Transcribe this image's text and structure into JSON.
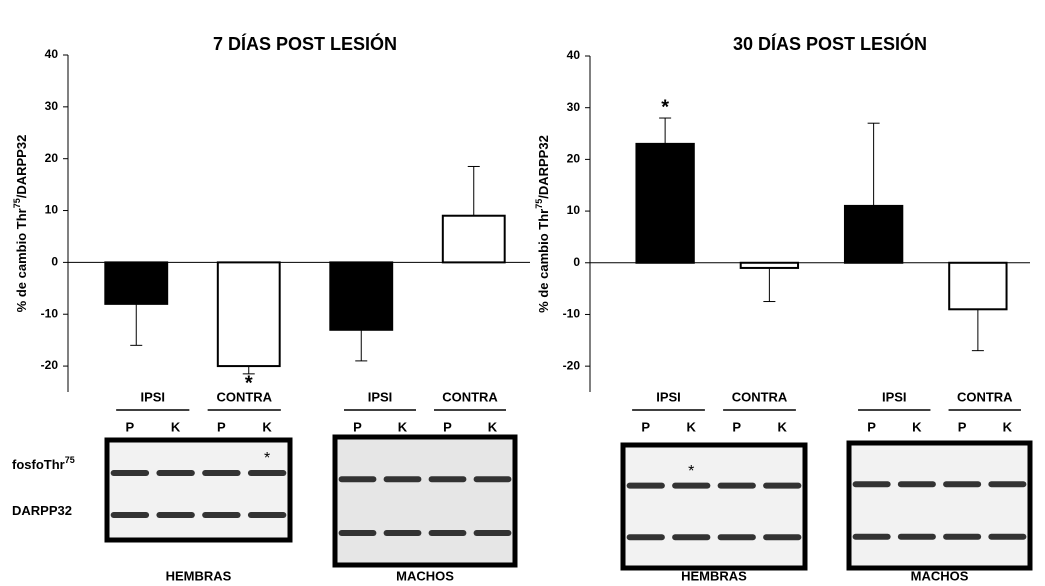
{
  "chart_data": [
    {
      "type": "bar",
      "title": "7 DÍAS POST LESIÓN",
      "ylabel": [
        "% de cambio Thr",
        "75",
        "/DARPP32"
      ],
      "categories": [
        null,
        null,
        null,
        null
      ],
      "values": [
        -8,
        -20,
        -13,
        9
      ],
      "errors": [
        8,
        1.5,
        6,
        9.5
      ],
      "colors": [
        "#000000",
        "#ffffff",
        "#000000",
        "#ffffff"
      ],
      "annotation": "*",
      "annotated": [
        false,
        true,
        false,
        false
      ],
      "ylim": [
        -25,
        40
      ],
      "yticks": [
        -20,
        -10,
        0,
        10,
        20,
        30,
        40
      ]
    },
    {
      "type": "bar",
      "title": "30 DÍAS POST LESIÓN",
      "ylabel": [
        "% de cambio Thr",
        "75",
        "/DARPP32"
      ],
      "categories": [
        null,
        null,
        null,
        null
      ],
      "values": [
        23,
        -1,
        11,
        -9
      ],
      "errors": [
        5,
        6.5,
        16,
        8
      ],
      "colors": [
        "#000000",
        "#ffffff",
        "#000000",
        "#ffffff"
      ],
      "annotation": "*",
      "annotated": [
        true,
        false,
        false,
        false
      ],
      "ylim": [
        -25,
        40
      ],
      "yticks": [
        -20,
        -10,
        0,
        10,
        20,
        30,
        40
      ]
    }
  ],
  "blots": {
    "row_labels": [
      [
        "fosfoThr",
        "75"
      ],
      [
        "DARPP32"
      ]
    ],
    "panels": [
      {
        "groups": [
          "IPSI",
          "CONTRA"
        ],
        "lanes": [
          "P",
          "K",
          "P",
          "K"
        ],
        "label": "HEMBRAS",
        "annotation": {
          "text": "*",
          "lane": 3
        }
      },
      {
        "groups": [
          "IPSI",
          "CONTRA"
        ],
        "lanes": [
          "P",
          "K",
          "P",
          "K"
        ],
        "label": "MACHOS"
      },
      {
        "groups": [
          "IPSI",
          "CONTRA"
        ],
        "lanes": [
          "P",
          "K",
          "P",
          "K"
        ],
        "label": "HEMBRAS",
        "annotation": {
          "text": "*",
          "lane": 1
        }
      },
      {
        "groups": [
          "IPSI",
          "CONTRA"
        ],
        "lanes": [
          "P",
          "K",
          "P",
          "K"
        ],
        "label": "MACHOS"
      }
    ]
  }
}
